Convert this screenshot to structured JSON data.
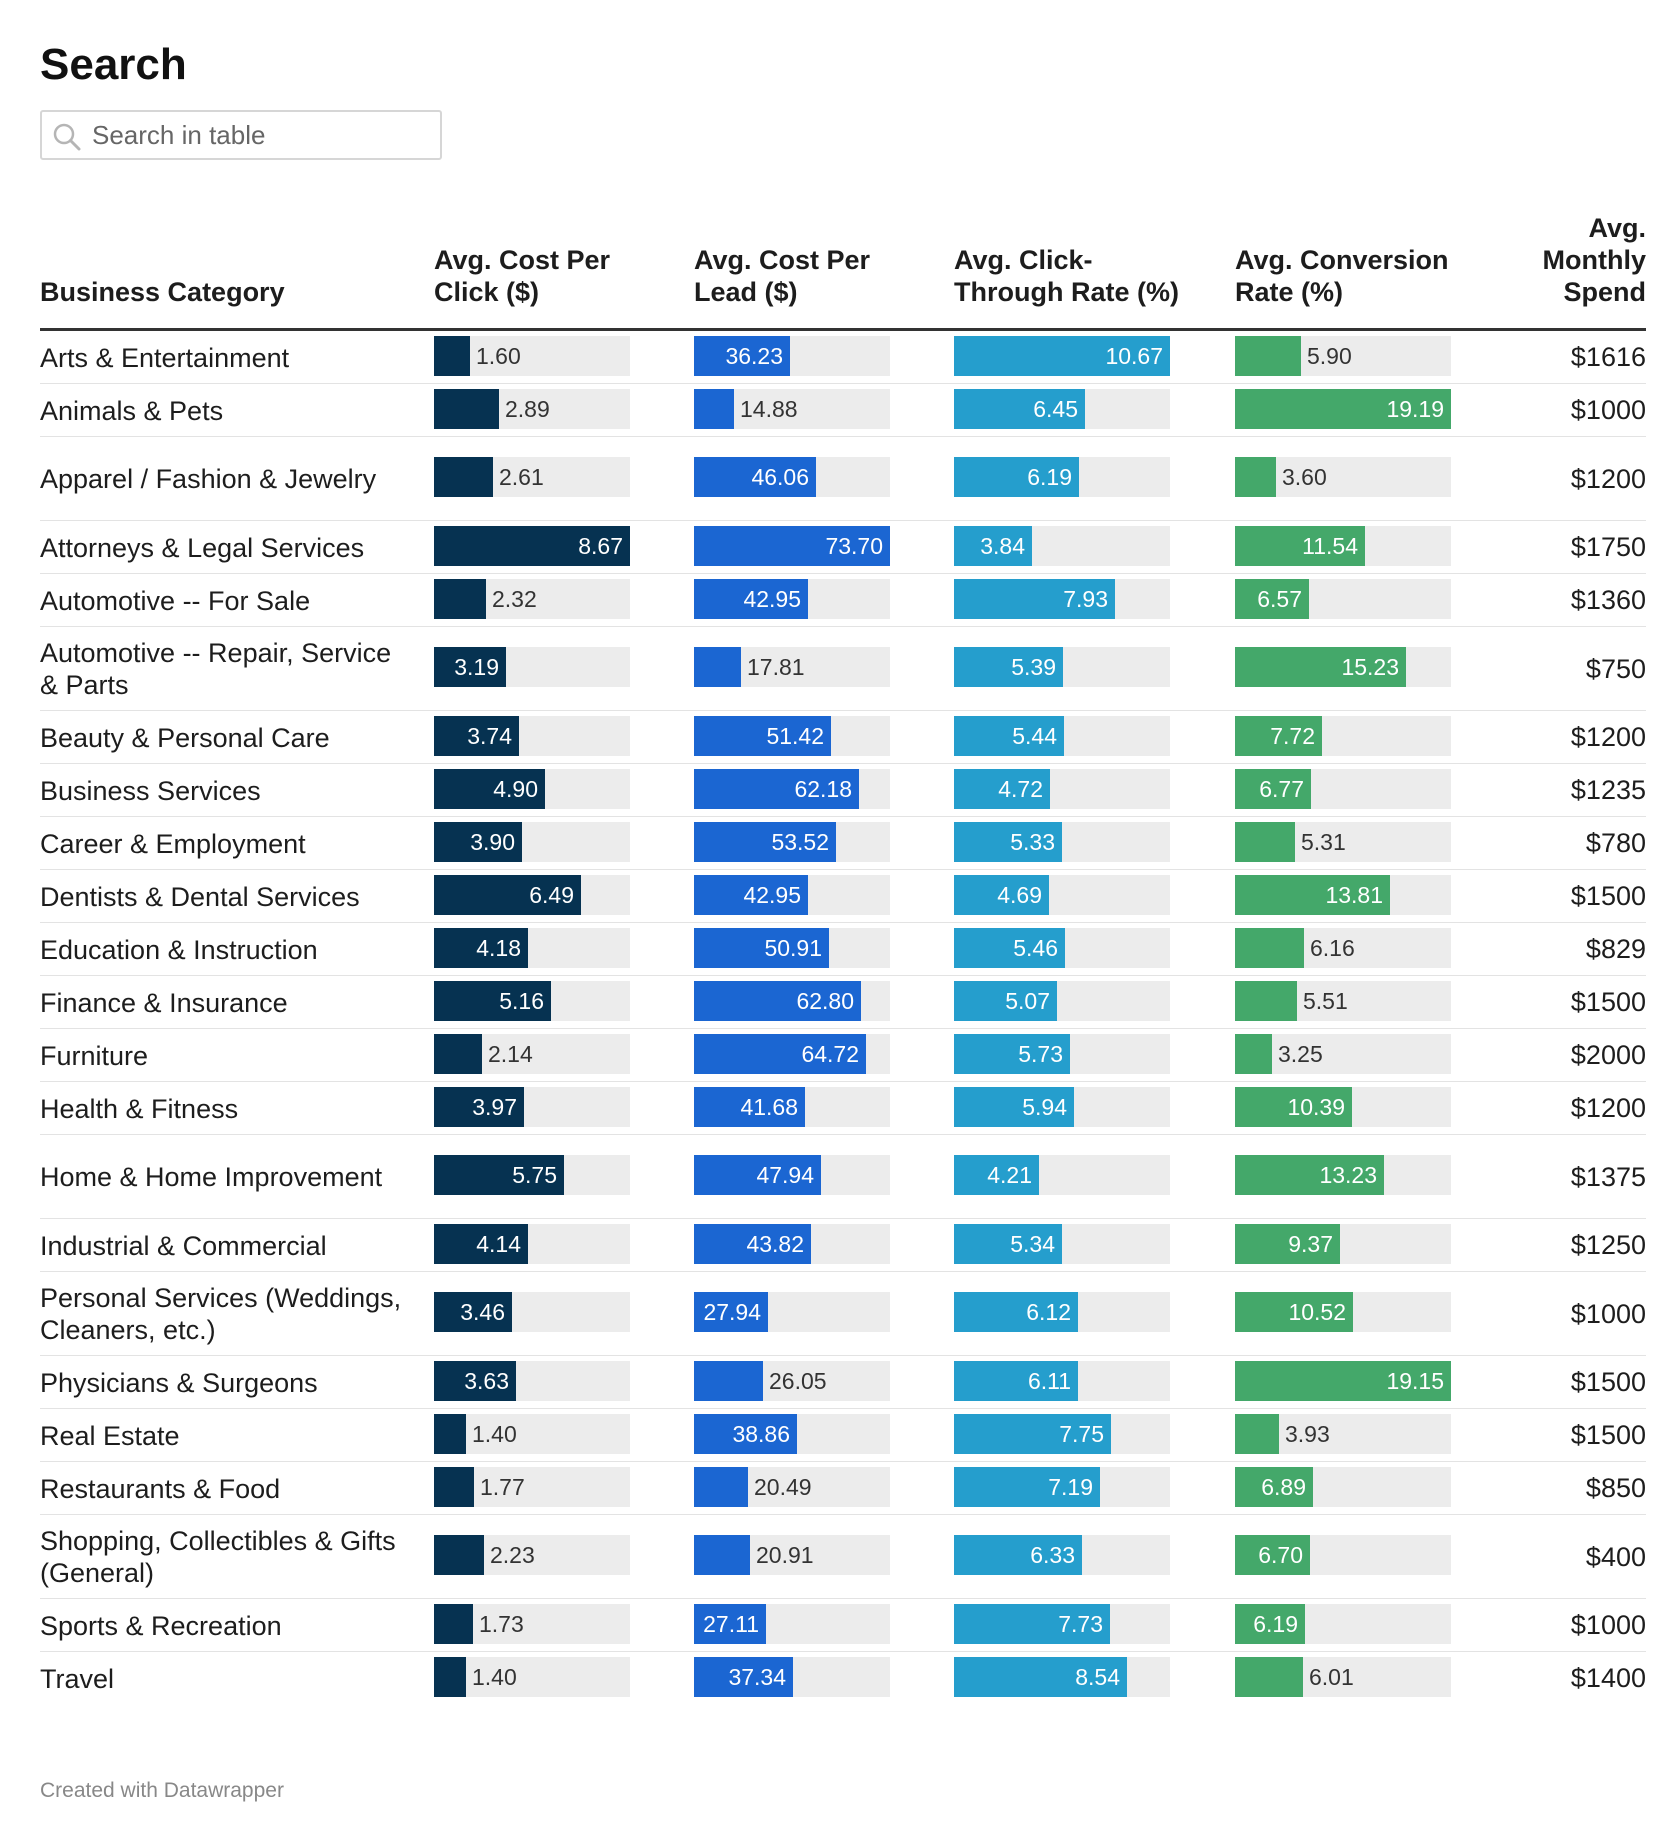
{
  "title": "Search",
  "search": {
    "placeholder": "Search in table",
    "icon": "search-icon"
  },
  "columns": {
    "category": "Business Category",
    "cpc": "Avg. Cost Per Click ($)",
    "cpl": "Avg. Cost Per Lead ($)",
    "ctr": "Avg. Click-Through Rate (%)",
    "conv": "Avg. Conversion Rate (%)",
    "spend": "Avg. Monthly Spend"
  },
  "colors": {
    "cpc": "#063251",
    "cpl": "#1b66d2",
    "ctr": "#259ecd",
    "conv": "#44a86a",
    "track": "#ececec"
  },
  "footer": "Created with Datawrapper",
  "chart_data": {
    "type": "table",
    "columns": [
      "Business Category",
      "Avg. Cost Per Click ($)",
      "Avg. Cost Per Lead ($)",
      "Avg. Click-Through Rate (%)",
      "Avg. Conversion Rate (%)",
      "Avg. Monthly Spend"
    ],
    "rows": [
      {
        "category": "Arts & Entertainment",
        "cpc": "1.60",
        "cpl": "36.23",
        "ctr": "10.67",
        "conv": "5.90",
        "spend": "$1616"
      },
      {
        "category": "Animals & Pets",
        "cpc": "2.89",
        "cpl": "14.88",
        "ctr": "6.45",
        "conv": "19.19",
        "spend": "$1000"
      },
      {
        "category": "Apparel / Fashion & Jewelry",
        "cpc": "2.61",
        "cpl": "46.06",
        "ctr": "6.19",
        "conv": "3.60",
        "spend": "$1200"
      },
      {
        "category": "Attorneys & Legal Services",
        "cpc": "8.67",
        "cpl": "73.70",
        "ctr": "3.84",
        "conv": "11.54",
        "spend": "$1750"
      },
      {
        "category": "Automotive -- For Sale",
        "cpc": "2.32",
        "cpl": "42.95",
        "ctr": "7.93",
        "conv": "6.57",
        "spend": "$1360"
      },
      {
        "category": "Automotive -- Repair, Service & Parts",
        "cpc": "3.19",
        "cpl": "17.81",
        "ctr": "5.39",
        "conv": "15.23",
        "spend": "$750"
      },
      {
        "category": "Beauty & Personal Care",
        "cpc": "3.74",
        "cpl": "51.42",
        "ctr": "5.44",
        "conv": "7.72",
        "spend": "$1200"
      },
      {
        "category": "Business Services",
        "cpc": "4.90",
        "cpl": "62.18",
        "ctr": "4.72",
        "conv": "6.77",
        "spend": "$1235"
      },
      {
        "category": "Career & Employment",
        "cpc": "3.90",
        "cpl": "53.52",
        "ctr": "5.33",
        "conv": "5.31",
        "spend": "$780"
      },
      {
        "category": "Dentists & Dental Services",
        "cpc": "6.49",
        "cpl": "42.95",
        "ctr": "4.69",
        "conv": "13.81",
        "spend": "$1500"
      },
      {
        "category": "Education & Instruction",
        "cpc": "4.18",
        "cpl": "50.91",
        "ctr": "5.46",
        "conv": "6.16",
        "spend": "$829"
      },
      {
        "category": "Finance & Insurance",
        "cpc": "5.16",
        "cpl": "62.80",
        "ctr": "5.07",
        "conv": "5.51",
        "spend": "$1500"
      },
      {
        "category": "Furniture",
        "cpc": "2.14",
        "cpl": "64.72",
        "ctr": "5.73",
        "conv": "3.25",
        "spend": "$2000"
      },
      {
        "category": "Health & Fitness",
        "cpc": "3.97",
        "cpl": "41.68",
        "ctr": "5.94",
        "conv": "10.39",
        "spend": "$1200"
      },
      {
        "category": "Home & Home Improvement",
        "cpc": "5.75",
        "cpl": "47.94",
        "ctr": "4.21",
        "conv": "13.23",
        "spend": "$1375"
      },
      {
        "category": "Industrial & Commercial",
        "cpc": "4.14",
        "cpl": "43.82",
        "ctr": "5.34",
        "conv": "9.37",
        "spend": "$1250"
      },
      {
        "category": "Personal Services (Weddings, Cleaners, etc.)",
        "cpc": "3.46",
        "cpl": "27.94",
        "ctr": "6.12",
        "conv": "10.52",
        "spend": "$1000"
      },
      {
        "category": "Physicians & Surgeons",
        "cpc": "3.63",
        "cpl": "26.05",
        "ctr": "6.11",
        "conv": "19.15",
        "spend": "$1500"
      },
      {
        "category": "Real Estate",
        "cpc": "1.40",
        "cpl": "38.86",
        "ctr": "7.75",
        "conv": "3.93",
        "spend": "$1500"
      },
      {
        "category": "Restaurants & Food",
        "cpc": "1.77",
        "cpl": "20.49",
        "ctr": "7.19",
        "conv": "6.89",
        "spend": "$850"
      },
      {
        "category": "Shopping, Collectibles & Gifts (General)",
        "cpc": "2.23",
        "cpl": "20.91",
        "ctr": "6.33",
        "conv": "6.70",
        "spend": "$400"
      },
      {
        "category": "Sports & Recreation",
        "cpc": "1.73",
        "cpl": "27.11",
        "ctr": "7.73",
        "conv": "6.19",
        "spend": "$1000"
      },
      {
        "category": "Travel",
        "cpc": "1.40",
        "cpl": "37.34",
        "ctr": "8.54",
        "conv": "6.01",
        "spend": "$1400"
      }
    ]
  }
}
